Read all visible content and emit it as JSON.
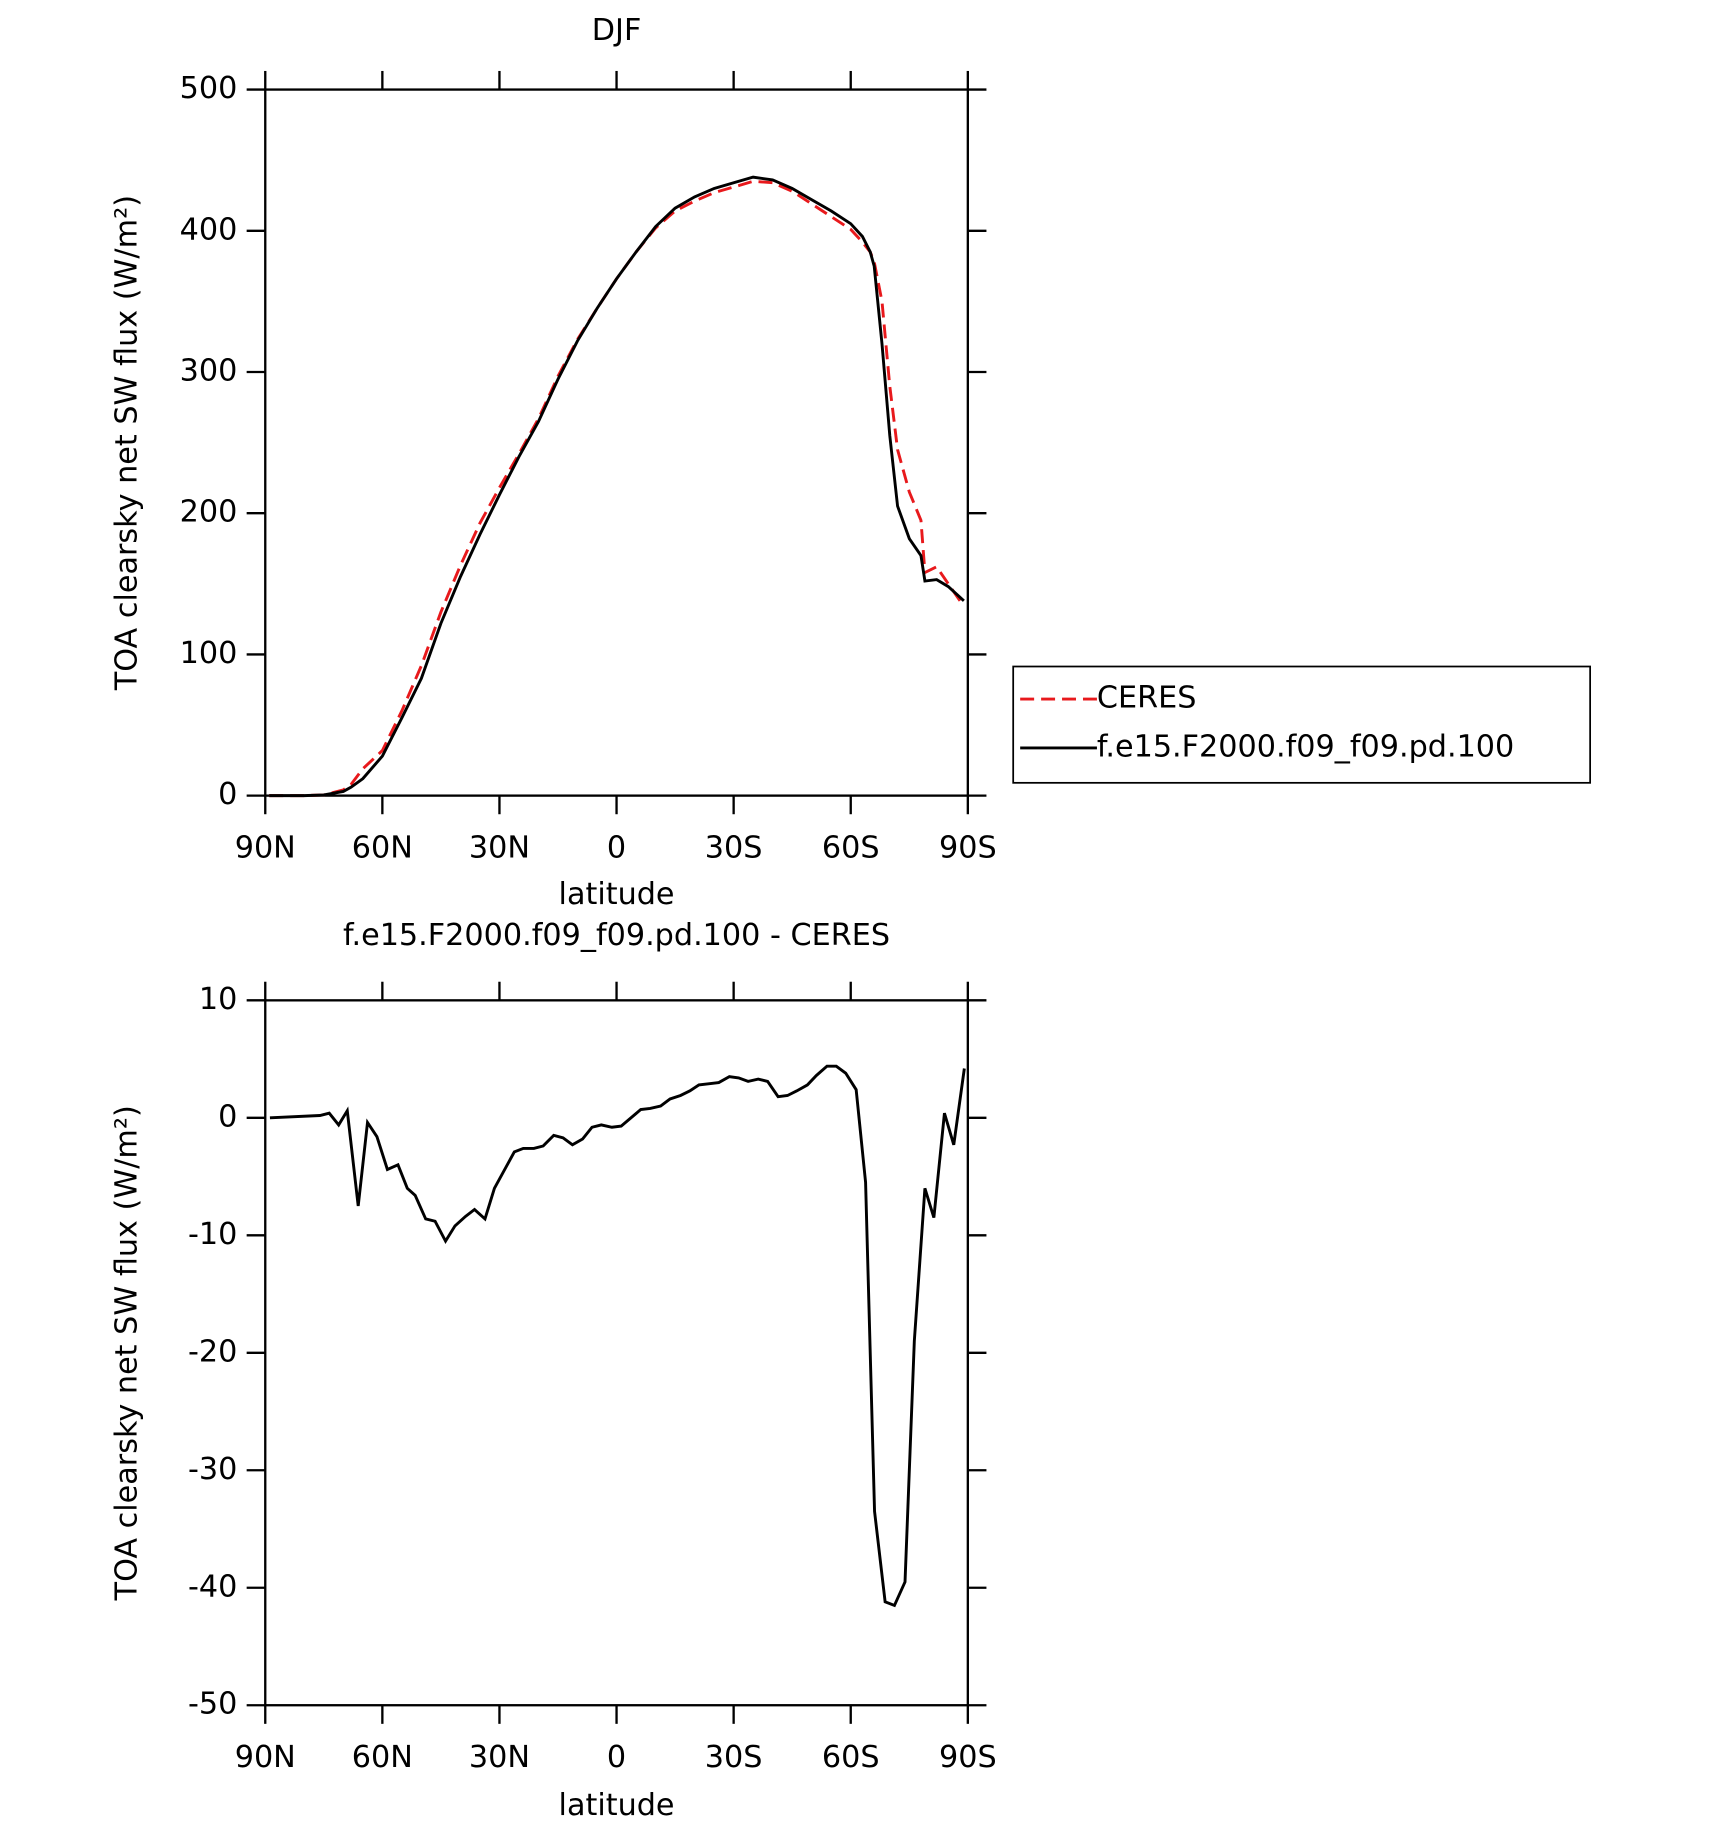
{
  "chart_data": [
    {
      "type": "line",
      "title": "DJF",
      "xlabel": "latitude",
      "ylabel": "TOA clearsky net SW flux (W/m²)",
      "xlim": [
        90,
        -90
      ],
      "ylim": [
        0,
        500
      ],
      "xticks": [
        {
          "value": 90,
          "label": "90N"
        },
        {
          "value": 60,
          "label": "60N"
        },
        {
          "value": 30,
          "label": "30N"
        },
        0,
        {
          "value": -30,
          "label": "30S"
        },
        {
          "value": -60,
          "label": "60S"
        },
        {
          "value": -90,
          "label": "90S"
        }
      ],
      "yticks": [
        0,
        100,
        200,
        300,
        400,
        500
      ],
      "legend": "outside-right",
      "x": [
        89,
        80,
        75,
        70,
        68,
        65,
        60,
        55,
        50,
        45,
        40,
        35,
        30,
        25,
        20,
        15,
        10,
        5,
        0,
        -5,
        -10,
        -15,
        -20,
        -25,
        -30,
        -35,
        -40,
        -45,
        -50,
        -55,
        -60,
        -63,
        -65,
        -66,
        -68,
        -70,
        -72,
        -75,
        -78,
        -79,
        -82,
        -85,
        -89
      ],
      "series": [
        {
          "name": "CERES",
          "color": "#e8191c",
          "style": "dashed",
          "values": [
            0,
            0,
            0.5,
            4,
            8,
            19,
            32,
            60,
            92,
            130,
            163,
            193,
            218,
            242,
            267,
            297,
            323,
            345,
            366,
            385,
            402,
            414,
            421,
            427,
            431,
            435,
            434,
            428,
            419,
            410,
            401,
            392,
            385,
            378,
            350,
            290,
            245,
            215,
            195,
            158,
            162,
            150,
            134
          ]
        },
        {
          "name": "f.e15.F2000.f09_f09.pd.100",
          "color": "#000000",
          "style": "solid",
          "values": [
            0,
            0,
            0.5,
            3,
            6,
            12,
            28,
            55,
            83,
            122,
            155,
            185,
            213,
            240,
            265,
            295,
            322,
            345,
            366,
            385,
            403,
            416,
            424,
            430,
            434,
            438,
            436,
            430,
            422,
            414,
            405,
            396,
            385,
            375,
            320,
            255,
            205,
            182,
            170,
            152,
            153,
            148,
            138
          ]
        }
      ]
    },
    {
      "type": "line",
      "title": "f.e15.F2000.f09_f09.pd.100 - CERES",
      "xlabel": "latitude",
      "ylabel": "TOA clearsky net SW flux (W/m²)",
      "xlim": [
        90,
        -90
      ],
      "ylim": [
        -50,
        10
      ],
      "xticks": [
        {
          "value": 90,
          "label": "90N"
        },
        {
          "value": 60,
          "label": "60N"
        },
        {
          "value": 30,
          "label": "30N"
        },
        0,
        {
          "value": -30,
          "label": "30S"
        },
        {
          "value": -60,
          "label": "60S"
        },
        {
          "value": -90,
          "label": "90S"
        }
      ],
      "yticks": [
        10,
        0,
        -10,
        -20,
        -30,
        -40,
        -50
      ],
      "x": [
        88.8,
        76,
        73.6,
        71.2,
        69,
        66.2,
        63.8,
        61.4,
        58.7,
        56,
        53.6,
        51.6,
        48.9,
        46.5,
        43.8,
        41.4,
        38.7,
        36.4,
        33.7,
        31.3,
        26.2,
        23.9,
        21.2,
        18.8,
        16.1,
        13.7,
        11.3,
        8.7,
        6.3,
        3.9,
        1.2,
        -1.2,
        -6.2,
        -8.6,
        -11.3,
        -13.7,
        -16.4,
        -18.8,
        -21.1,
        -23.8,
        -26.2,
        -28.9,
        -31.3,
        -33.7,
        -36.3,
        -38.7,
        -41.4,
        -43.8,
        -46.2,
        -48.9,
        -51.2,
        -53.9,
        -56.3,
        -58.7,
        -61.4,
        -63.8,
        -66.1,
        -68.8,
        -71.2,
        -73.9,
        -76.3,
        -79,
        -81.3,
        -84,
        -86.4,
        -89.1
      ],
      "series": [
        {
          "name": "f.e15.F2000.f09_f09.pd.100 - CERES",
          "color": "#000000",
          "style": "solid",
          "values": [
            0,
            0.2,
            0.4,
            -0.6,
            0.6,
            -7.5,
            -0.4,
            -1.6,
            -4.4,
            -4.0,
            -6.0,
            -6.6,
            -8.6,
            -8.8,
            -10.5,
            -9.2,
            -8.4,
            -7.8,
            -8.6,
            -6.0,
            -2.9,
            -2.6,
            -2.6,
            -2.4,
            -1.5,
            -1.7,
            -2.3,
            -1.8,
            -0.8,
            -0.6,
            -0.8,
            -0.7,
            0.7,
            0.8,
            1.0,
            1.6,
            1.9,
            2.3,
            2.8,
            2.9,
            3.0,
            3.5,
            3.4,
            3.1,
            3.3,
            3.1,
            1.8,
            1.9,
            2.3,
            2.8,
            3.6,
            4.4,
            4.4,
            3.8,
            2.4,
            -5.5,
            -33.5,
            -41.2,
            -41.5,
            -39.5,
            -19,
            -6,
            -8.5,
            0.4,
            -2.3,
            4.2
          ]
        }
      ]
    }
  ]
}
